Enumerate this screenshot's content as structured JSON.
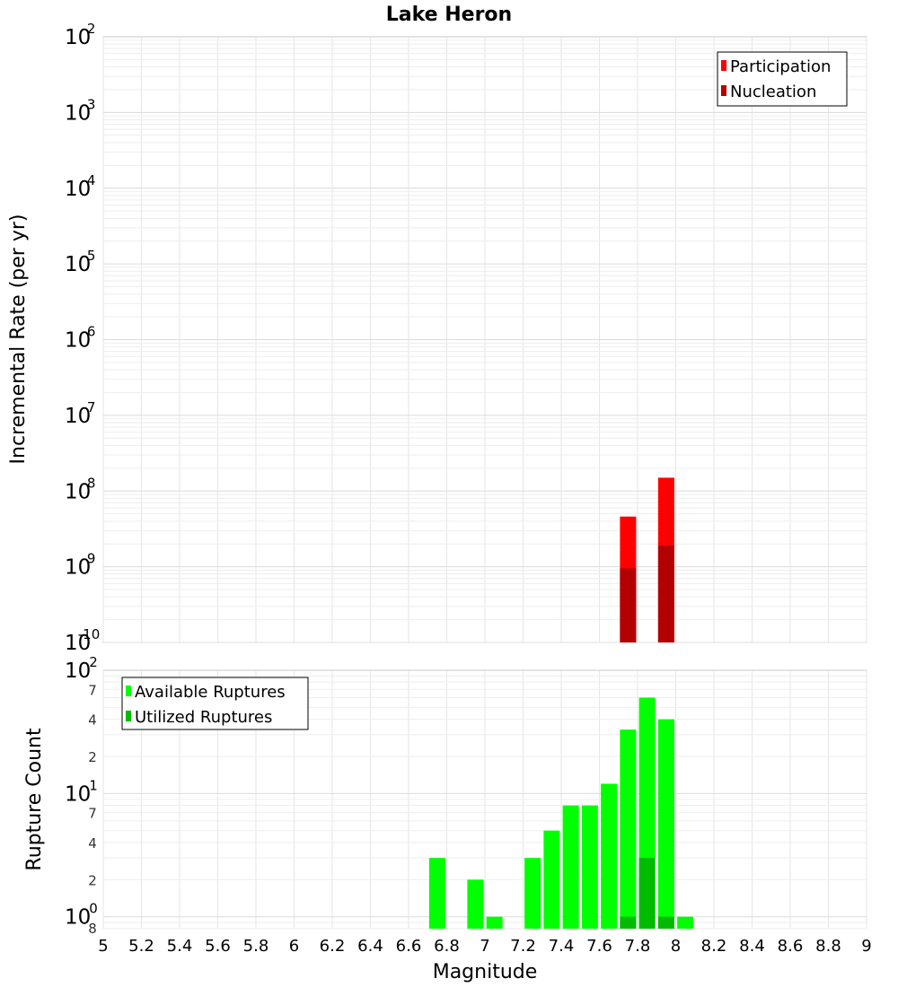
{
  "chart_data": [
    {
      "type": "bar",
      "panel": "top",
      "title": "Lake Heron",
      "ylabel": "Incremental Rate (per yr)",
      "yscale": "log",
      "ylim": [
        1e-10,
        0.01
      ],
      "xlim": [
        5,
        9
      ],
      "y_tick_exponents": [
        "-2",
        "-3",
        "-4",
        "-5",
        "-6",
        "-7",
        "-8",
        "-9",
        "-10"
      ],
      "legend": {
        "position": "top-right",
        "entries": [
          "Participation",
          "Nucleation"
        ]
      },
      "grid": true,
      "colors": {
        "Participation": "#ff0000",
        "Nucleation": "#b30000"
      },
      "series": [
        {
          "name": "Participation",
          "x": [
            7.75,
            7.95
          ],
          "values": [
            4.6e-09,
            1.5e-08
          ]
        },
        {
          "name": "Nucleation",
          "x": [
            7.75,
            7.95
          ],
          "values": [
            9.5e-10,
            1.9e-09
          ]
        }
      ]
    },
    {
      "type": "bar",
      "panel": "bottom",
      "ylabel": "Rupture Count",
      "yscale": "log",
      "ylim": [
        0.8,
        100
      ],
      "xlabel": "Magnitude",
      "xlim": [
        5,
        9
      ],
      "x_ticks": [
        "5",
        "5.2",
        "5.4",
        "5.6",
        "5.8",
        "6",
        "6.2",
        "6.4",
        "6.6",
        "6.8",
        "7",
        "7.2",
        "7.4",
        "7.6",
        "7.8",
        "8",
        "8.2",
        "8.4",
        "8.6",
        "8.8",
        "9"
      ],
      "y_major_labels": [
        {
          "base": "10",
          "exp": "2",
          "value": 100
        },
        {
          "base": "10",
          "exp": "1",
          "value": 10
        },
        {
          "base": "10",
          "exp": "0",
          "value": 1
        }
      ],
      "y_minor_labels": [
        "7",
        "4",
        "2",
        "7",
        "4",
        "2",
        "8"
      ],
      "legend": {
        "position": "top-left",
        "entries": [
          "Available Ruptures",
          "Utilized Ruptures"
        ]
      },
      "grid": true,
      "colors": {
        "Available Ruptures": "#00ff00",
        "Utilized Ruptures": "#00bb00"
      },
      "series": [
        {
          "name": "Available Ruptures",
          "x": [
            6.75,
            6.95,
            7.05,
            7.25,
            7.35,
            7.45,
            7.55,
            7.65,
            7.75,
            7.85,
            7.95,
            8.05
          ],
          "values": [
            3,
            2,
            1,
            3,
            5,
            8,
            8,
            12,
            33,
            60,
            40,
            1
          ]
        },
        {
          "name": "Utilized Ruptures",
          "x": [
            7.75,
            7.85,
            7.95
          ],
          "values": [
            1,
            3,
            1
          ]
        }
      ]
    }
  ]
}
